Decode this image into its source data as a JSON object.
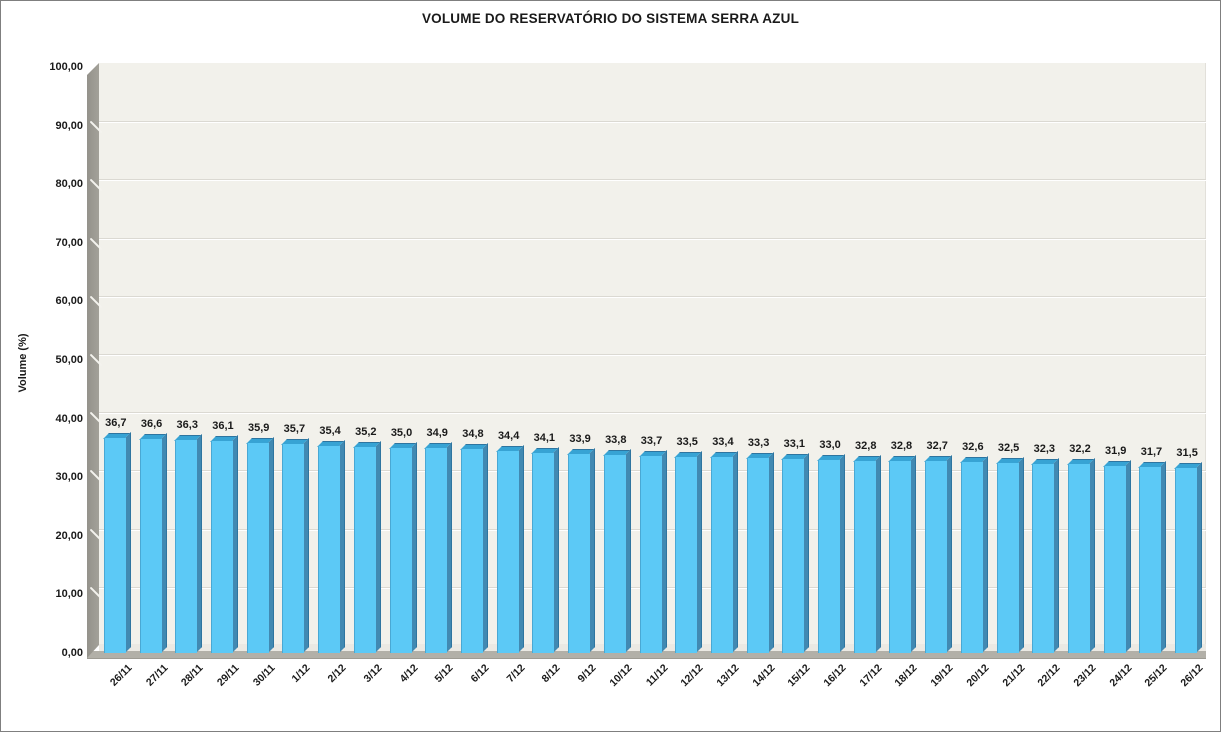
{
  "window": {
    "background": "#FFFFFF",
    "border_color": "#7F7F7F"
  },
  "chart_data": {
    "type": "bar",
    "style": "3d-box-bars",
    "title": "VOLUME DO RESERVATÓRIO DO SISTEMA SERRA AZUL",
    "xlabel": "",
    "ylabel": "Volume (%)",
    "ylim": [
      0,
      100
    ],
    "ytick_step": 10,
    "ytick_decimals": 2,
    "decimal_separator": ",",
    "grid": true,
    "legend_position": "none",
    "ytick_labels": [
      "0,00",
      "10,00",
      "20,00",
      "30,00",
      "40,00",
      "50,00",
      "60,00",
      "70,00",
      "80,00",
      "90,00",
      "100,00"
    ],
    "categories": [
      "26/11",
      "27/11",
      "28/11",
      "29/11",
      "30/11",
      "1/12",
      "2/12",
      "3/12",
      "4/12",
      "5/12",
      "6/12",
      "7/12",
      "8/12",
      "9/12",
      "10/12",
      "11/12",
      "12/12",
      "13/12",
      "14/12",
      "15/12",
      "16/12",
      "17/12",
      "18/12",
      "19/12",
      "20/12",
      "21/12",
      "22/12",
      "23/12",
      "24/12",
      "25/12",
      "26/12"
    ],
    "values": [
      36.7,
      36.6,
      36.3,
      36.1,
      35.9,
      35.7,
      35.4,
      35.2,
      35.0,
      34.9,
      34.8,
      34.4,
      34.1,
      33.9,
      33.8,
      33.7,
      33.5,
      33.4,
      33.3,
      33.1,
      33.0,
      32.8,
      32.8,
      32.7,
      32.6,
      32.5,
      32.3,
      32.2,
      31.9,
      31.7,
      31.5
    ],
    "value_labels": [
      "36,7",
      "36,6",
      "36,3",
      "36,1",
      "35,9",
      "35,7",
      "35,4",
      "35,2",
      "35,0",
      "34,9",
      "34,8",
      "34,4",
      "34,1",
      "33,9",
      "33,8",
      "33,7",
      "33,5",
      "33,4",
      "33,3",
      "33,1",
      "33,0",
      "32,8",
      "32,8",
      "32,7",
      "32,6",
      "32,5",
      "32,3",
      "32,2",
      "31,9",
      "31,7",
      "31,5"
    ],
    "colors": {
      "bar_front": "#5CC9F6",
      "bar_side": "#4189B2",
      "bar_top": "#37A3D4",
      "bar_edge": "#2E75A0",
      "plot_bg": "#F2F1EB",
      "gridline": "#FFFFFF",
      "gridline_shadow": "#DBD9D2",
      "wall": "#A3A199",
      "wall_tick": "#F4F3EE",
      "floor": "#B2B0A8",
      "floor_light": "#EBE9E3",
      "text": "#1A1A1A"
    }
  }
}
